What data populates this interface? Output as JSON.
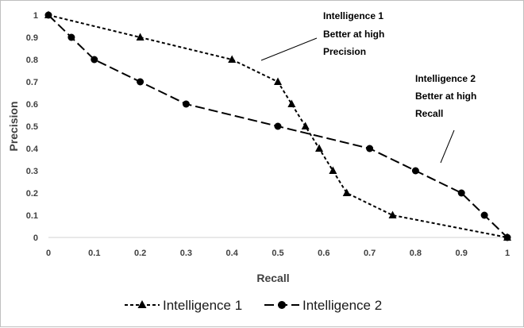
{
  "chart_data": {
    "type": "line",
    "title": "",
    "xlabel": "Recall",
    "ylabel": "Precision",
    "xlim": [
      0,
      1
    ],
    "ylim": [
      0,
      1
    ],
    "x_ticks": [
      "0",
      "0.1",
      "0.2",
      "0.3",
      "0.4",
      "0.5",
      "0.6",
      "0.7",
      "0.8",
      "0.9",
      "1"
    ],
    "y_ticks": [
      "0",
      "0.1",
      "0.2",
      "0.3",
      "0.4",
      "0.5",
      "0.6",
      "0.7",
      "0.8",
      "0.9",
      "1"
    ],
    "grid": false,
    "legend_position": "bottom",
    "series": [
      {
        "name": "Intelligence 1",
        "marker": "triangle",
        "line_style": "short-dash",
        "color": "#000000",
        "points": [
          [
            0,
            1
          ],
          [
            0.2,
            0.9
          ],
          [
            0.4,
            0.8
          ],
          [
            0.5,
            0.7
          ],
          [
            0.53,
            0.6
          ],
          [
            0.56,
            0.5
          ],
          [
            0.59,
            0.4
          ],
          [
            0.62,
            0.3
          ],
          [
            0.65,
            0.2
          ],
          [
            0.75,
            0.1
          ],
          [
            1,
            0
          ]
        ]
      },
      {
        "name": "Intelligence 2",
        "marker": "circle",
        "line_style": "long-dash",
        "color": "#000000",
        "points": [
          [
            0,
            1
          ],
          [
            0.05,
            0.9
          ],
          [
            0.1,
            0.8
          ],
          [
            0.2,
            0.7
          ],
          [
            0.3,
            0.6
          ],
          [
            0.5,
            0.5
          ],
          [
            0.7,
            0.4
          ],
          [
            0.8,
            0.3
          ],
          [
            0.9,
            0.2
          ],
          [
            0.95,
            0.1
          ],
          [
            1,
            0
          ]
        ]
      }
    ],
    "annotations": [
      {
        "lines": [
          "Intelligence 1",
          "Better at high",
          "Precision"
        ]
      },
      {
        "lines": [
          "Intelligence 2",
          "Better at high",
          "Recall"
        ]
      }
    ]
  }
}
